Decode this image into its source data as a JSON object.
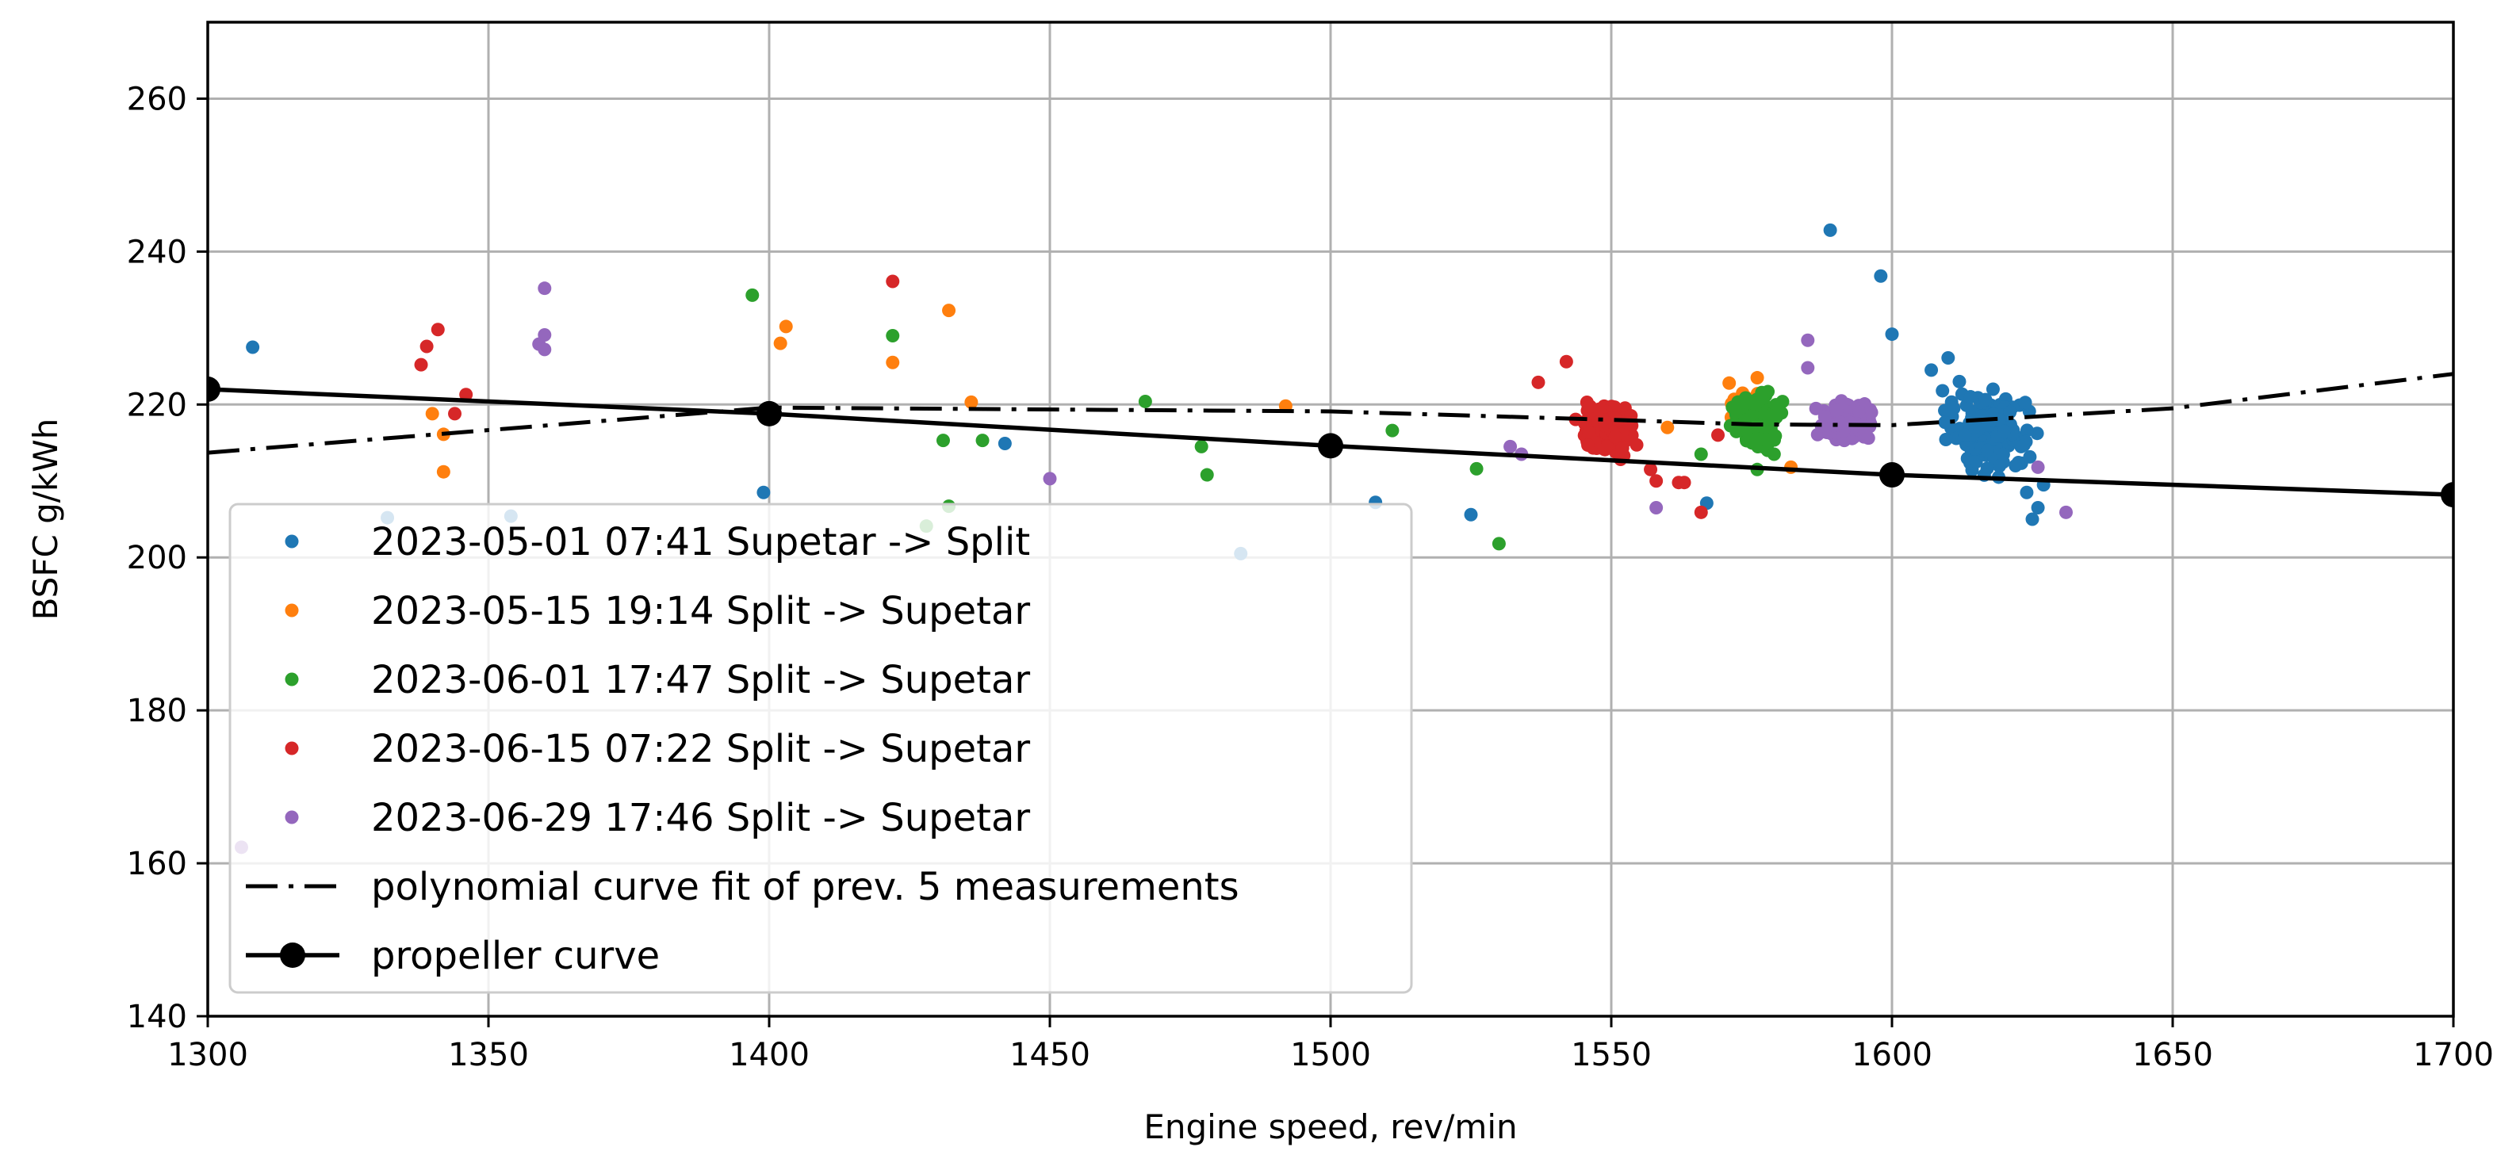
{
  "chart_data": {
    "type": "scatter",
    "title": "",
    "xlabel": "Engine speed, rev/min",
    "ylabel": "BSFC g/kWh",
    "xlim": [
      1300,
      1700
    ],
    "ylim": [
      140,
      270
    ],
    "xticks": [
      1300,
      1350,
      1400,
      1450,
      1500,
      1550,
      1600,
      1650,
      1700
    ],
    "yticks": [
      140,
      160,
      180,
      200,
      220,
      240,
      260
    ],
    "grid": true,
    "legend_position": "lower-left",
    "series": [
      {
        "name": "2023-05-01  07:41 Supetar -> Split",
        "kind": "scatter",
        "color": "#1f77b4",
        "points": [
          [
            1308,
            227.5
          ],
          [
            1332,
            205.2
          ],
          [
            1354,
            205.4
          ],
          [
            1399,
            208.5
          ],
          [
            1442,
            214.9
          ],
          [
            1484,
            200.5
          ],
          [
            1508,
            207.2
          ],
          [
            1525,
            205.6
          ],
          [
            1567,
            207.1
          ],
          [
            1589,
            242.8
          ],
          [
            1598,
            236.8
          ],
          [
            1600,
            229.2
          ],
          [
            1607,
            224.5
          ],
          [
            1609,
            221.8
          ],
          [
            1610,
            226.1
          ],
          [
            1611,
            219.5
          ],
          [
            1612,
            223.0
          ],
          [
            1613,
            216.0
          ],
          [
            1614,
            221.0
          ],
          [
            1615,
            212.5
          ],
          [
            1616,
            218.5
          ],
          [
            1617,
            214.0
          ],
          [
            1618,
            222.0
          ],
          [
            1619,
            210.5
          ],
          [
            1620,
            216.5
          ],
          [
            1621,
            219.0
          ],
          [
            1622,
            212.0
          ],
          [
            1623,
            214.5
          ],
          [
            1624,
            208.5
          ],
          [
            1625,
            205.0
          ],
          [
            1626,
            206.5
          ],
          [
            1627,
            209.5
          ]
        ],
        "cluster": {
          "x_center": 1617,
          "y_center": 216.5,
          "x_spread": 9,
          "y_spread": 5.5,
          "count": 160
        }
      },
      {
        "name": "2023-05-15  19:14 Split -> Supetar",
        "kind": "scatter",
        "color": "#ff7f0e",
        "points": [
          [
            1340,
            218.8
          ],
          [
            1342,
            211.2
          ],
          [
            1342,
            216.1
          ],
          [
            1402,
            228.0
          ],
          [
            1403,
            230.2
          ],
          [
            1422,
            225.5
          ],
          [
            1432,
            232.3
          ],
          [
            1436,
            220.3
          ],
          [
            1492,
            219.8
          ],
          [
            1560,
            217.0
          ],
          [
            1571,
            222.8
          ],
          [
            1576,
            223.5
          ],
          [
            1582,
            211.8
          ]
        ],
        "cluster": {
          "x_center": 1574,
          "y_center": 220.0,
          "x_spread": 4,
          "y_spread": 2.5,
          "count": 40
        }
      },
      {
        "name": "2023-06-01  17:47 Split -> Supetar",
        "kind": "scatter",
        "color": "#2ca02c",
        "points": [
          [
            1397,
            234.3
          ],
          [
            1422,
            229.0
          ],
          [
            1428,
            204.1
          ],
          [
            1431,
            215.3
          ],
          [
            1432,
            206.7
          ],
          [
            1438,
            215.3
          ],
          [
            1467,
            220.4
          ],
          [
            1477,
            214.5
          ],
          [
            1478,
            210.8
          ],
          [
            1511,
            216.6
          ],
          [
            1526,
            211.6
          ],
          [
            1530,
            201.8
          ],
          [
            1566,
            213.5
          ],
          [
            1576,
            211.5
          ],
          [
            1579,
            213.5
          ]
        ],
        "cluster": {
          "x_center": 1576,
          "y_center": 218.0,
          "x_spread": 5,
          "y_spread": 4.5,
          "count": 140
        }
      },
      {
        "name": "2023-06-15  07:22 Split -> Supetar",
        "kind": "scatter",
        "color": "#d62728",
        "points": [
          [
            1338,
            225.2
          ],
          [
            1339,
            227.6
          ],
          [
            1341,
            229.8
          ],
          [
            1344,
            218.8
          ],
          [
            1346,
            221.3
          ],
          [
            1422,
            236.1
          ],
          [
            1537,
            222.9
          ],
          [
            1542,
            225.6
          ],
          [
            1557,
            211.5
          ],
          [
            1558,
            210.0
          ],
          [
            1562,
            209.8
          ],
          [
            1563,
            209.8
          ],
          [
            1566,
            205.9
          ],
          [
            1569,
            216.0
          ]
        ],
        "cluster": {
          "x_center": 1549,
          "y_center": 216.5,
          "x_spread": 6,
          "y_spread": 4,
          "count": 150
        }
      },
      {
        "name": "2023-06-29  17:46 Split -> Supetar",
        "kind": "scatter",
        "color": "#9467bd",
        "points": [
          [
            1306,
            162.1
          ],
          [
            1359,
            227.9
          ],
          [
            1360,
            229.1
          ],
          [
            1360,
            235.2
          ],
          [
            1360,
            227.2
          ],
          [
            1450,
            210.3
          ],
          [
            1532,
            214.5
          ],
          [
            1534,
            213.5
          ],
          [
            1558,
            206.5
          ],
          [
            1585,
            228.4
          ],
          [
            1585,
            224.8
          ],
          [
            1626,
            211.8
          ],
          [
            1631,
            205.9
          ]
        ],
        "cluster": {
          "x_center": 1592,
          "y_center": 217.5,
          "x_spread": 6,
          "y_spread": 3.2,
          "count": 130
        }
      },
      {
        "name": "polynomial curve fit of prev. 5 measurements",
        "kind": "dashdot-line",
        "color": "#000000",
        "x": [
          1300,
          1400,
          1500,
          1550,
          1575,
          1600,
          1650,
          1700
        ],
        "y": [
          213.7,
          219.6,
          219.1,
          218.0,
          217.4,
          217.3,
          219.5,
          224.0
        ]
      },
      {
        "name": "propeller curve",
        "kind": "line-marker",
        "color": "#000000",
        "x": [
          1300,
          1400,
          1500,
          1600,
          1700
        ],
        "y": [
          222.0,
          218.8,
          214.6,
          210.8,
          208.2
        ]
      }
    ]
  }
}
